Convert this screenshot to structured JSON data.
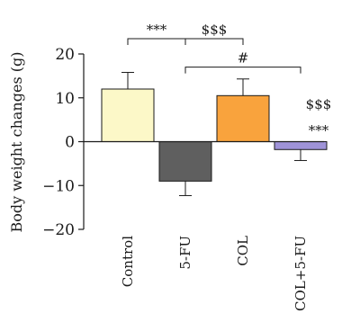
{
  "chart_data": {
    "type": "bar",
    "ylabel": "Body weight changes (g)",
    "ylim": [
      -20,
      20
    ],
    "yticks": [
      -20,
      -10,
      0,
      10,
      20
    ],
    "categories": [
      "Control",
      "5-FU",
      "COL",
      "COL+5-FU"
    ],
    "values": [
      12,
      -9,
      10.5,
      -1.8
    ],
    "errors": [
      3.8,
      3.3,
      3.8,
      2.5
    ],
    "colors": [
      "#fcf8c8",
      "#5f5f5f",
      "#f9a33d",
      "#9f93d8"
    ],
    "annotations": [
      {
        "text": "***",
        "type": "bracket",
        "from": 0,
        "to": 1,
        "level": 23.5
      },
      {
        "text": "$$$",
        "type": "bracket",
        "from": 1,
        "to": 2,
        "level": 23.5
      },
      {
        "text": "#",
        "type": "bracket",
        "from": 1,
        "to": 3,
        "level": 17
      },
      {
        "text": "$$$",
        "type": "label",
        "category": 3,
        "value": 7.5
      },
      {
        "text": "***",
        "type": "label",
        "category": 3,
        "value": 1.5
      }
    ]
  }
}
